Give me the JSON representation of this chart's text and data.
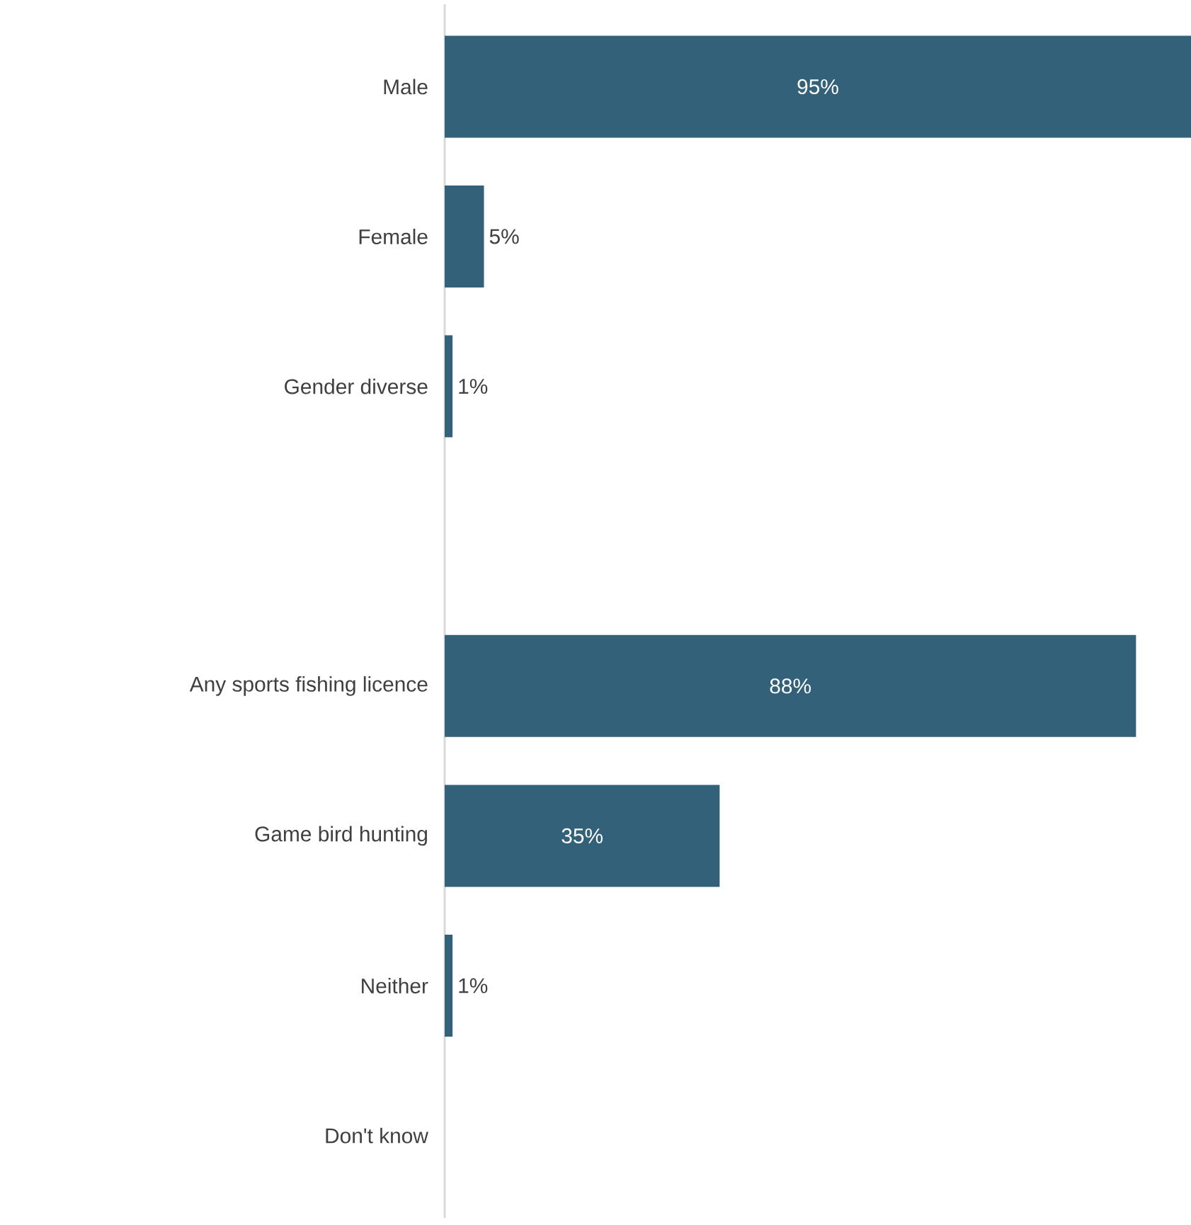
{
  "chart_data": {
    "type": "bar",
    "orientation": "horizontal",
    "categories": [
      "Male",
      "Female",
      "Gender diverse",
      null,
      "Any sports fishing licence",
      "Game bird hunting",
      "Neither",
      "Don't know"
    ],
    "values": [
      95,
      5,
      1,
      null,
      88,
      35,
      1,
      0
    ],
    "value_labels": [
      "95%",
      "5%",
      "1%",
      null,
      "88%",
      "35%",
      "1%",
      null
    ],
    "color": "#336179"
  }
}
